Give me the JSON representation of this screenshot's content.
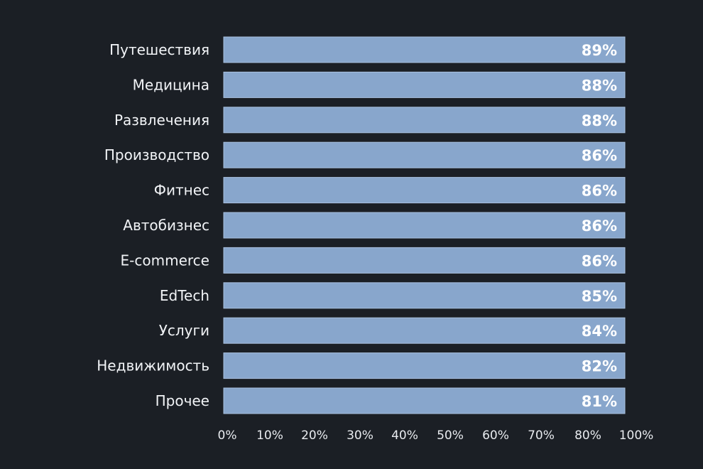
{
  "chart_data": {
    "type": "bar",
    "orientation": "horizontal",
    "categories": [
      "Путешествия",
      "Медицина",
      "Развлечения",
      "Производство",
      "Фитнес",
      "Автобизнес",
      "E-commerce",
      "EdTech",
      "Услуги",
      "Недвижимость",
      "Прочее"
    ],
    "values": [
      89,
      88,
      88,
      86,
      86,
      86,
      86,
      85,
      84,
      82,
      81
    ],
    "value_labels": [
      "89%",
      "88%",
      "88%",
      "86%",
      "86%",
      "86%",
      "86%",
      "85%",
      "84%",
      "82%",
      "81%"
    ],
    "x_tick_labels": [
      "0%",
      "10%",
      "20%",
      "30%",
      "40%",
      "50%",
      "60%",
      "70%",
      "80%",
      "100%"
    ],
    "xlim": [
      0,
      100
    ],
    "title": "",
    "xlabel": "",
    "ylabel": "",
    "grid": false,
    "legend": "none",
    "colors": {
      "background": "#1b1f25",
      "bar": "#88a6cc",
      "text": "#ffffff"
    }
  }
}
